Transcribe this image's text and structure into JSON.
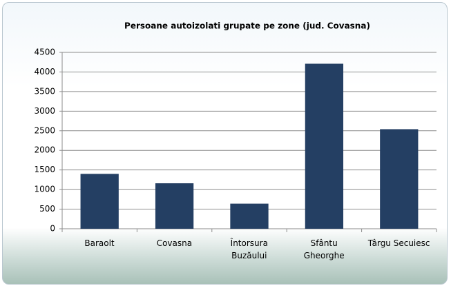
{
  "chart_data": {
    "type": "bar",
    "title": "Persoane autoizolati  grupate pe zone (jud. Covasna)",
    "categories": [
      "Baraolt",
      "Covasna",
      "Întorsura\nBuzăului",
      "Sfântu\nGheorghe",
      "Târgu Secuiesc"
    ],
    "values": [
      1400,
      1160,
      640,
      4210,
      2540
    ],
    "color": "#243f63",
    "ylim": [
      0,
      4500
    ],
    "yticks": [
      0,
      500,
      1000,
      1500,
      2000,
      2500,
      3000,
      3500,
      4000,
      4500
    ],
    "grid": true
  }
}
